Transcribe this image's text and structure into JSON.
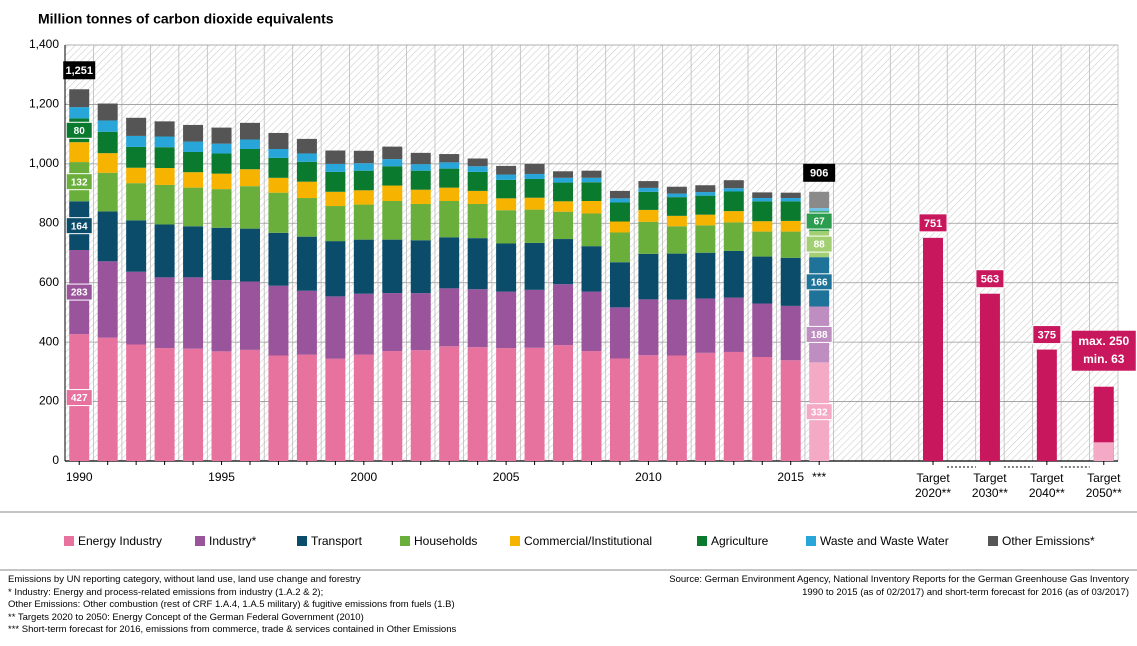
{
  "chart_data": {
    "type": "stacked_bar",
    "title": "Million tonnes of carbon dioxide equivalents",
    "categories": [
      "1990",
      null,
      null,
      null,
      null,
      "1995",
      null,
      null,
      null,
      null,
      "2000",
      null,
      null,
      null,
      null,
      "2005",
      null,
      null,
      null,
      null,
      "2010",
      null,
      null,
      null,
      null,
      "2015",
      "***"
    ],
    "series": [
      {
        "name": "Energy Industry",
        "color": "#e8729e",
        "forecast_color": "#f4a9c4",
        "values": [
          427,
          415,
          392,
          380,
          378,
          369,
          374,
          355,
          358,
          344,
          358,
          370,
          373,
          386,
          383,
          380,
          381,
          390,
          370,
          345,
          356,
          355,
          364,
          367,
          350,
          339,
          332
        ],
        "value_labels": [
          "427",
          null,
          null,
          null,
          null,
          null,
          null,
          null,
          null,
          null,
          null,
          null,
          null,
          null,
          null,
          null,
          null,
          null,
          null,
          null,
          null,
          null,
          null,
          null,
          null,
          null,
          "332"
        ]
      },
      {
        "name": "Industry*",
        "color": "#9a549b",
        "forecast_color": "#bd8ebf",
        "values": [
          283,
          257,
          245,
          238,
          240,
          240,
          230,
          235,
          215,
          210,
          205,
          195,
          192,
          195,
          195,
          190,
          195,
          205,
          200,
          172,
          188,
          188,
          183,
          183,
          180,
          183,
          188
        ],
        "value_labels": [
          "283",
          null,
          null,
          null,
          null,
          null,
          null,
          null,
          null,
          null,
          null,
          null,
          null,
          null,
          null,
          null,
          null,
          null,
          null,
          null,
          null,
          null,
          null,
          null,
          null,
          null,
          "188"
        ]
      },
      {
        "name": "Transport",
        "color": "#0b4c6a",
        "forecast_color": "#1f7398",
        "values": [
          164,
          168,
          173,
          178,
          172,
          176,
          178,
          178,
          182,
          186,
          182,
          180,
          178,
          172,
          172,
          162,
          158,
          152,
          153,
          152,
          153,
          155,
          154,
          157,
          158,
          162,
          166
        ],
        "value_labels": [
          "164",
          null,
          null,
          null,
          null,
          null,
          null,
          null,
          null,
          null,
          null,
          null,
          null,
          null,
          null,
          null,
          null,
          null,
          null,
          null,
          null,
          null,
          null,
          null,
          null,
          null,
          "166"
        ]
      },
      {
        "name": "Households",
        "color": "#6aae3c",
        "forecast_color": "#a2cf72",
        "values": [
          132,
          130,
          125,
          133,
          130,
          130,
          143,
          135,
          130,
          118,
          118,
          130,
          122,
          122,
          115,
          112,
          112,
          92,
          110,
          100,
          108,
          92,
          92,
          96,
          84,
          88,
          88
        ],
        "value_labels": [
          "132",
          null,
          null,
          null,
          null,
          null,
          null,
          null,
          null,
          null,
          null,
          null,
          null,
          null,
          null,
          null,
          null,
          null,
          null,
          null,
          null,
          null,
          null,
          null,
          null,
          null,
          "88"
        ]
      },
      {
        "name": "Commercial/Institutional",
        "color": "#f6b400",
        "forecast_color": "#f9cf5a",
        "values": [
          67,
          66,
          52,
          57,
          52,
          52,
          57,
          50,
          55,
          48,
          48,
          52,
          48,
          45,
          44,
          40,
          40,
          35,
          42,
          37,
          40,
          35,
          36,
          38,
          35,
          36,
          0
        ],
        "value_labels": [
          null,
          null,
          null,
          null,
          null,
          null,
          null,
          null,
          null,
          null,
          null,
          null,
          null,
          null,
          null,
          null,
          null,
          null,
          null,
          null,
          null,
          null,
          null,
          null,
          null,
          null,
          null
        ]
      },
      {
        "name": "Agriculture",
        "color": "#0a7a2f",
        "forecast_color": "#2c9c4f",
        "values": [
          80,
          72,
          70,
          70,
          68,
          68,
          68,
          67,
          67,
          67,
          66,
          65,
          64,
          64,
          64,
          62,
          63,
          63,
          63,
          64,
          61,
          63,
          64,
          66,
          67,
          66,
          67
        ],
        "value_labels": [
          "80",
          null,
          null,
          null,
          null,
          null,
          null,
          null,
          null,
          null,
          null,
          null,
          null,
          null,
          null,
          null,
          null,
          null,
          null,
          null,
          null,
          null,
          null,
          null,
          null,
          null,
          "67"
        ]
      },
      {
        "name": "Waste and Waste Water",
        "color": "#28a6d9",
        "forecast_color": "#6cc3e8",
        "values": [
          38,
          38,
          37,
          36,
          35,
          33,
          32,
          30,
          28,
          27,
          25,
          24,
          22,
          21,
          19,
          18,
          17,
          16,
          15,
          14,
          13,
          12,
          12,
          11,
          11,
          11,
          10
        ],
        "value_labels": [
          null,
          null,
          null,
          null,
          null,
          null,
          null,
          null,
          null,
          null,
          null,
          null,
          null,
          null,
          null,
          null,
          null,
          null,
          null,
          null,
          null,
          null,
          null,
          null,
          null,
          null,
          null
        ]
      },
      {
        "name": "Other Emissions*",
        "color": "#555555",
        "forecast_color": "#8a8a8a",
        "values": [
          60,
          57,
          61,
          51,
          56,
          54,
          56,
          54,
          49,
          45,
          42,
          42,
          38,
          28,
          26,
          29,
          34,
          22,
          24,
          25,
          23,
          23,
          23,
          27,
          19,
          18,
          55
        ],
        "value_labels": [
          null,
          null,
          null,
          null,
          null,
          null,
          null,
          null,
          null,
          null,
          null,
          null,
          null,
          null,
          null,
          null,
          null,
          null,
          null,
          null,
          null,
          null,
          null,
          null,
          null,
          null,
          null
        ]
      }
    ],
    "totals": [
      1251,
      null,
      null,
      null,
      null,
      null,
      null,
      null,
      null,
      null,
      null,
      null,
      null,
      null,
      null,
      null,
      null,
      null,
      null,
      null,
      null,
      null,
      null,
      null,
      null,
      null,
      906
    ],
    "total_labels": [
      "1,251",
      null,
      null,
      null,
      null,
      null,
      null,
      null,
      null,
      null,
      null,
      null,
      null,
      null,
      null,
      null,
      null,
      null,
      null,
      null,
      null,
      null,
      null,
      null,
      null,
      null,
      "906"
    ],
    "targets": [
      {
        "label": "Target 2020**",
        "value": 751,
        "value_label": "751"
      },
      {
        "label": "Target 2030**",
        "value": 563,
        "value_label": "563"
      },
      {
        "label": "Target 2040**",
        "value": 375,
        "value_label": "375"
      },
      {
        "label": "Target 2050**",
        "value": 250,
        "value_label": "max. 250",
        "min": 63,
        "min_label": "min. 63"
      }
    ],
    "target_color": "#c8175d",
    "target_min_color": "#f4a9c4",
    "ylim": [
      0,
      1400
    ],
    "yticks": [
      0,
      200,
      400,
      600,
      800,
      {
        "value": 1000,
        "label": "1,000"
      },
      {
        "value": 1200,
        "label": "1,200"
      },
      {
        "value": 1400,
        "label": "1,400"
      }
    ],
    "grid": true,
    "notes": [
      "Emissions by UN reporting category, without land use, land use change and forestry",
      "* Industry: Energy and process-related emissions from industry (1.A.2 & 2);",
      "Other Emissions: Other combustion (rest of CRF 1.A.4, 1.A.5 military) & fugitive emissions from fuels (1.B)",
      "** Targets 2020 to 2050: Energy Concept of the German Federal Government (2010)",
      "*** Short-term forecast for 2016, emissions from commerce, trade & services contained in Other Emissions"
    ],
    "source": "Source: German Environment Agency, National Inventory Reports for the German Greenhouse Gas Inventory 1990 to 2015 (as of 02/2017) and short-term forecast for 2016 (as of 03/2017)"
  }
}
